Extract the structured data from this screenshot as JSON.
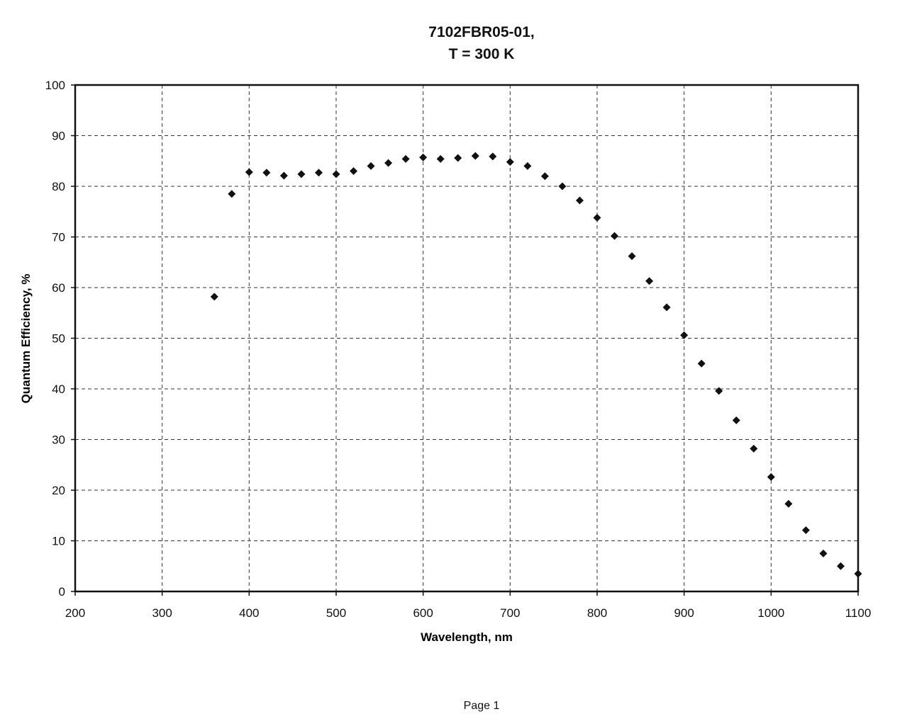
{
  "chart_data": {
    "type": "scatter",
    "title": [
      "7102FBR05-01,",
      "T = 300 K"
    ],
    "xlabel": "Wavelength, nm",
    "ylabel": "Quantum Efficiency, %",
    "xlim": [
      200,
      1100
    ],
    "ylim": [
      0,
      100
    ],
    "xticks": [
      200,
      300,
      400,
      500,
      600,
      700,
      800,
      900,
      1000,
      1100
    ],
    "yticks": [
      0,
      10,
      20,
      30,
      40,
      50,
      60,
      70,
      80,
      90,
      100
    ],
    "grid": true,
    "legend": "none",
    "marker": "diamond",
    "marker_color": "#111111",
    "series": [
      {
        "x": [
          360,
          380,
          400,
          420,
          440,
          460,
          480,
          500,
          520,
          540,
          560,
          580,
          600,
          620,
          640,
          660,
          680,
          700,
          720,
          740,
          760,
          780,
          800,
          820,
          840,
          860,
          880,
          900,
          920,
          940,
          960,
          980,
          1000,
          1020,
          1040,
          1060,
          1080,
          1100
        ],
        "y": [
          58.2,
          78.5,
          82.8,
          82.7,
          82.1,
          82.4,
          82.7,
          82.4,
          83.0,
          84.0,
          84.6,
          85.4,
          85.7,
          85.4,
          85.6,
          86.0,
          85.9,
          84.8,
          84.0,
          82.0,
          80.0,
          77.2,
          73.8,
          70.2,
          66.2,
          61.3,
          56.1,
          50.6,
          45.0,
          39.6,
          33.8,
          28.2,
          22.6,
          17.3,
          12.1,
          7.5,
          5.0,
          3.5
        ]
      }
    ]
  },
  "footer": "Page 1"
}
